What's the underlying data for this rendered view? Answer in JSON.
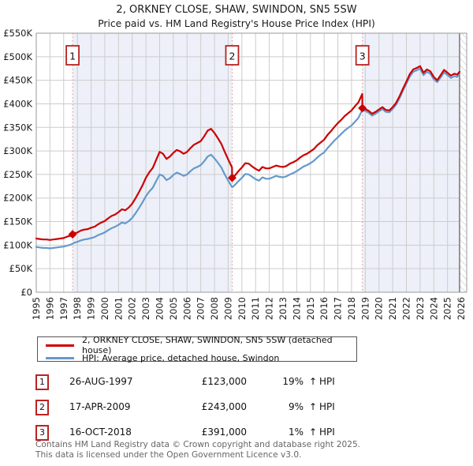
{
  "title": "2, ORKNEY CLOSE, SHAW, SWINDON, SN5 5SW",
  "subtitle": "Price paid vs. HM Land Registry's House Price Index (HPI)",
  "legend": {
    "items": [
      {
        "label": "2, ORKNEY CLOSE, SHAW, SWINDON, SN5 5SW (detached house)",
        "color": "#cc0000"
      },
      {
        "label": "HPI: Average price, detached house, Swindon",
        "color": "#6699cc"
      }
    ]
  },
  "transactions": [
    {
      "num": "1",
      "date": "26-AUG-1997",
      "price": "£123,000",
      "pct": "19%",
      "arrow": "↑",
      "vs": "HPI"
    },
    {
      "num": "2",
      "date": "17-APR-2009",
      "price": "£243,000",
      "pct": "9%",
      "arrow": "↑",
      "vs": "HPI"
    },
    {
      "num": "3",
      "date": "16-OCT-2018",
      "price": "£391,000",
      "pct": "1%",
      "arrow": "↑",
      "vs": "HPI"
    }
  ],
  "footer": {
    "line1": "Contains HM Land Registry data © Crown copyright and database right 2025.",
    "line2": "This data is licensed under the Open Government Licence v3.0."
  },
  "chart_data": {
    "type": "line",
    "title": "2, ORKNEY CLOSE, SHAW, SWINDON, SN5 5SW",
    "y_unit": "GBP thousands",
    "x_range": [
      1995,
      2026.4
    ],
    "y_range_k": [
      0,
      550
    ],
    "y_ticks_k": [
      0,
      50,
      100,
      150,
      200,
      250,
      300,
      350,
      400,
      450,
      500,
      550
    ],
    "y_tick_labels": [
      "£0",
      "£50K",
      "£100K",
      "£150K",
      "£200K",
      "£250K",
      "£300K",
      "£350K",
      "£400K",
      "£450K",
      "£500K",
      "£550K"
    ],
    "x_tick_labels": [
      "1995",
      "1996",
      "1997",
      "1998",
      "1999",
      "2000",
      "2001",
      "2002",
      "2003",
      "2004",
      "2005",
      "2006",
      "2007",
      "2008",
      "2009",
      "2010",
      "2011",
      "2012",
      "2013",
      "2014",
      "2015",
      "2016",
      "2017",
      "2018",
      "2019",
      "2020",
      "2021",
      "2022",
      "2023",
      "2024",
      "2025",
      "2026"
    ],
    "grid": true,
    "band_color": "#edf0f8",
    "grid_color": "#cccccc",
    "border_color": "#999999",
    "dashed_line_color": "#e88a8a",
    "hatch_line_color": "#b8bcc4",
    "shaded_bands": [
      [
        1997.65,
        2009.29
      ],
      [
        2018.79,
        2026.4
      ]
    ],
    "hatch_from": 2025.88,
    "markers": [
      {
        "label": "1",
        "x": 1997.65,
        "y_k": 123,
        "price": "£123,000"
      },
      {
        "label": "2",
        "x": 2009.29,
        "y_k": 243,
        "price": "£243,000"
      },
      {
        "label": "3",
        "x": 2018.79,
        "y_k": 391,
        "price": "£391,000"
      }
    ],
    "series": [
      {
        "name": "2, ORKNEY CLOSE, SHAW, SWINDON, SN5 5SW (detached house)",
        "color": "#cc0000",
        "width": 2.2,
        "points": [
          [
            1995.0,
            114
          ],
          [
            1995.25,
            113
          ],
          [
            1995.5,
            112
          ],
          [
            1995.75,
            112
          ],
          [
            1996.0,
            111
          ],
          [
            1996.25,
            112
          ],
          [
            1996.5,
            113
          ],
          [
            1996.75,
            114
          ],
          [
            1997.0,
            115
          ],
          [
            1997.25,
            118
          ],
          [
            1997.5,
            120
          ],
          [
            1997.65,
            123
          ],
          [
            1997.75,
            125
          ],
          [
            1998.0,
            127
          ],
          [
            1998.25,
            131
          ],
          [
            1998.5,
            133
          ],
          [
            1998.75,
            134
          ],
          [
            1999.0,
            137
          ],
          [
            1999.25,
            139
          ],
          [
            1999.5,
            144
          ],
          [
            1999.75,
            148
          ],
          [
            2000.0,
            151
          ],
          [
            2000.25,
            157
          ],
          [
            2000.5,
            162
          ],
          [
            2000.75,
            165
          ],
          [
            2001.0,
            170
          ],
          [
            2001.25,
            176
          ],
          [
            2001.5,
            174
          ],
          [
            2001.75,
            180
          ],
          [
            2002.0,
            188
          ],
          [
            2002.25,
            200
          ],
          [
            2002.5,
            213
          ],
          [
            2002.75,
            227
          ],
          [
            2003.0,
            243
          ],
          [
            2003.25,
            255
          ],
          [
            2003.5,
            264
          ],
          [
            2003.75,
            281
          ],
          [
            2004.0,
            298
          ],
          [
            2004.25,
            294
          ],
          [
            2004.5,
            283
          ],
          [
            2004.75,
            288
          ],
          [
            2005.0,
            296
          ],
          [
            2005.25,
            302
          ],
          [
            2005.5,
            299
          ],
          [
            2005.75,
            294
          ],
          [
            2006.0,
            298
          ],
          [
            2006.25,
            306
          ],
          [
            2006.5,
            313
          ],
          [
            2006.75,
            317
          ],
          [
            2007.0,
            321
          ],
          [
            2007.25,
            331
          ],
          [
            2007.5,
            343
          ],
          [
            2007.75,
            347
          ],
          [
            2008.0,
            338
          ],
          [
            2008.25,
            327
          ],
          [
            2008.5,
            315
          ],
          [
            2008.75,
            298
          ],
          [
            2009.0,
            282
          ],
          [
            2009.28,
            265
          ],
          [
            2009.29,
            243
          ],
          [
            2009.5,
            248
          ],
          [
            2009.75,
            257
          ],
          [
            2010.0,
            265
          ],
          [
            2010.25,
            274
          ],
          [
            2010.5,
            273
          ],
          [
            2010.75,
            267
          ],
          [
            2011.0,
            262
          ],
          [
            2011.25,
            258
          ],
          [
            2011.5,
            266
          ],
          [
            2011.75,
            263
          ],
          [
            2012.0,
            263
          ],
          [
            2012.25,
            266
          ],
          [
            2012.5,
            269
          ],
          [
            2012.75,
            267
          ],
          [
            2013.0,
            266
          ],
          [
            2013.25,
            268
          ],
          [
            2013.5,
            273
          ],
          [
            2013.75,
            276
          ],
          [
            2014.0,
            280
          ],
          [
            2014.25,
            286
          ],
          [
            2014.5,
            291
          ],
          [
            2014.75,
            294
          ],
          [
            2015.0,
            299
          ],
          [
            2015.25,
            304
          ],
          [
            2015.5,
            312
          ],
          [
            2015.75,
            318
          ],
          [
            2016.0,
            324
          ],
          [
            2016.25,
            334
          ],
          [
            2016.5,
            342
          ],
          [
            2016.75,
            351
          ],
          [
            2017.0,
            359
          ],
          [
            2017.25,
            366
          ],
          [
            2017.5,
            374
          ],
          [
            2017.75,
            380
          ],
          [
            2018.0,
            386
          ],
          [
            2018.25,
            395
          ],
          [
            2018.5,
            403
          ],
          [
            2018.75,
            419
          ],
          [
            2018.78,
            421
          ],
          [
            2018.79,
            391
          ],
          [
            2019.0,
            389
          ],
          [
            2019.25,
            385
          ],
          [
            2019.5,
            379
          ],
          [
            2019.75,
            383
          ],
          [
            2020.0,
            388
          ],
          [
            2020.25,
            393
          ],
          [
            2020.5,
            387
          ],
          [
            2020.75,
            386
          ],
          [
            2021.0,
            393
          ],
          [
            2021.25,
            402
          ],
          [
            2021.5,
            416
          ],
          [
            2021.75,
            432
          ],
          [
            2022.0,
            447
          ],
          [
            2022.25,
            463
          ],
          [
            2022.5,
            473
          ],
          [
            2022.75,
            476
          ],
          [
            2023.0,
            480
          ],
          [
            2023.25,
            466
          ],
          [
            2023.5,
            473
          ],
          [
            2023.75,
            469
          ],
          [
            2024.0,
            457
          ],
          [
            2024.25,
            450
          ],
          [
            2024.5,
            461
          ],
          [
            2024.75,
            472
          ],
          [
            2025.0,
            466
          ],
          [
            2025.25,
            460
          ],
          [
            2025.5,
            464
          ],
          [
            2025.7,
            462
          ],
          [
            2025.88,
            468
          ]
        ]
      },
      {
        "name": "HPI: Average price, detached house, Swindon",
        "color": "#6699cc",
        "width": 2.2,
        "points": [
          [
            1995.0,
            96
          ],
          [
            1995.25,
            95
          ],
          [
            1995.5,
            94
          ],
          [
            1995.75,
            94
          ],
          [
            1996.0,
            93
          ],
          [
            1996.25,
            94
          ],
          [
            1996.5,
            95
          ],
          [
            1996.75,
            96
          ],
          [
            1997.0,
            97
          ],
          [
            1997.25,
            99
          ],
          [
            1997.5,
            101
          ],
          [
            1997.65,
            103
          ],
          [
            1997.75,
            105
          ],
          [
            1998.0,
            107
          ],
          [
            1998.25,
            110
          ],
          [
            1998.5,
            112
          ],
          [
            1998.75,
            113
          ],
          [
            1999.0,
            115
          ],
          [
            1999.25,
            117
          ],
          [
            1999.5,
            121
          ],
          [
            1999.75,
            124
          ],
          [
            2000.0,
            127
          ],
          [
            2000.25,
            132
          ],
          [
            2000.5,
            136
          ],
          [
            2000.75,
            139
          ],
          [
            2001.0,
            143
          ],
          [
            2001.25,
            148
          ],
          [
            2001.5,
            146
          ],
          [
            2001.75,
            151
          ],
          [
            2002.0,
            158
          ],
          [
            2002.25,
            168
          ],
          [
            2002.5,
            179
          ],
          [
            2002.75,
            191
          ],
          [
            2003.0,
            204
          ],
          [
            2003.25,
            214
          ],
          [
            2003.5,
            222
          ],
          [
            2003.75,
            236
          ],
          [
            2004.0,
            250
          ],
          [
            2004.25,
            247
          ],
          [
            2004.5,
            238
          ],
          [
            2004.75,
            242
          ],
          [
            2005.0,
            249
          ],
          [
            2005.25,
            254
          ],
          [
            2005.5,
            251
          ],
          [
            2005.75,
            247
          ],
          [
            2006.0,
            250
          ],
          [
            2006.25,
            257
          ],
          [
            2006.5,
            263
          ],
          [
            2006.75,
            266
          ],
          [
            2007.0,
            270
          ],
          [
            2007.25,
            278
          ],
          [
            2007.5,
            288
          ],
          [
            2007.75,
            292
          ],
          [
            2008.0,
            284
          ],
          [
            2008.25,
            275
          ],
          [
            2008.5,
            265
          ],
          [
            2008.75,
            250
          ],
          [
            2009.0,
            237
          ],
          [
            2009.29,
            223
          ],
          [
            2009.5,
            228
          ],
          [
            2009.75,
            236
          ],
          [
            2010.0,
            243
          ],
          [
            2010.25,
            251
          ],
          [
            2010.5,
            250
          ],
          [
            2010.75,
            245
          ],
          [
            2011.0,
            240
          ],
          [
            2011.25,
            237
          ],
          [
            2011.5,
            244
          ],
          [
            2011.75,
            241
          ],
          [
            2012.0,
            241
          ],
          [
            2012.25,
            244
          ],
          [
            2012.5,
            247
          ],
          [
            2012.75,
            245
          ],
          [
            2013.0,
            244
          ],
          [
            2013.25,
            246
          ],
          [
            2013.5,
            250
          ],
          [
            2013.75,
            253
          ],
          [
            2014.0,
            257
          ],
          [
            2014.25,
            262
          ],
          [
            2014.5,
            267
          ],
          [
            2014.75,
            270
          ],
          [
            2015.0,
            274
          ],
          [
            2015.25,
            279
          ],
          [
            2015.5,
            286
          ],
          [
            2015.75,
            292
          ],
          [
            2016.0,
            297
          ],
          [
            2016.25,
            306
          ],
          [
            2016.5,
            314
          ],
          [
            2016.75,
            322
          ],
          [
            2017.0,
            329
          ],
          [
            2017.25,
            336
          ],
          [
            2017.5,
            343
          ],
          [
            2017.75,
            349
          ],
          [
            2018.0,
            354
          ],
          [
            2018.25,
            362
          ],
          [
            2018.5,
            370
          ],
          [
            2018.79,
            387
          ],
          [
            2019.0,
            385
          ],
          [
            2019.25,
            381
          ],
          [
            2019.5,
            375
          ],
          [
            2019.75,
            379
          ],
          [
            2020.0,
            384
          ],
          [
            2020.25,
            389
          ],
          [
            2020.5,
            383
          ],
          [
            2020.75,
            382
          ],
          [
            2021.0,
            389
          ],
          [
            2021.25,
            398
          ],
          [
            2021.5,
            412
          ],
          [
            2021.75,
            428
          ],
          [
            2022.0,
            443
          ],
          [
            2022.25,
            458
          ],
          [
            2022.5,
            468
          ],
          [
            2022.75,
            471
          ],
          [
            2023.0,
            475
          ],
          [
            2023.25,
            461
          ],
          [
            2023.5,
            468
          ],
          [
            2023.75,
            464
          ],
          [
            2024.0,
            452
          ],
          [
            2024.25,
            446
          ],
          [
            2024.5,
            456
          ],
          [
            2024.75,
            467
          ],
          [
            2025.0,
            461
          ],
          [
            2025.25,
            455
          ],
          [
            2025.5,
            459
          ],
          [
            2025.7,
            457
          ],
          [
            2025.88,
            463
          ]
        ]
      }
    ]
  }
}
